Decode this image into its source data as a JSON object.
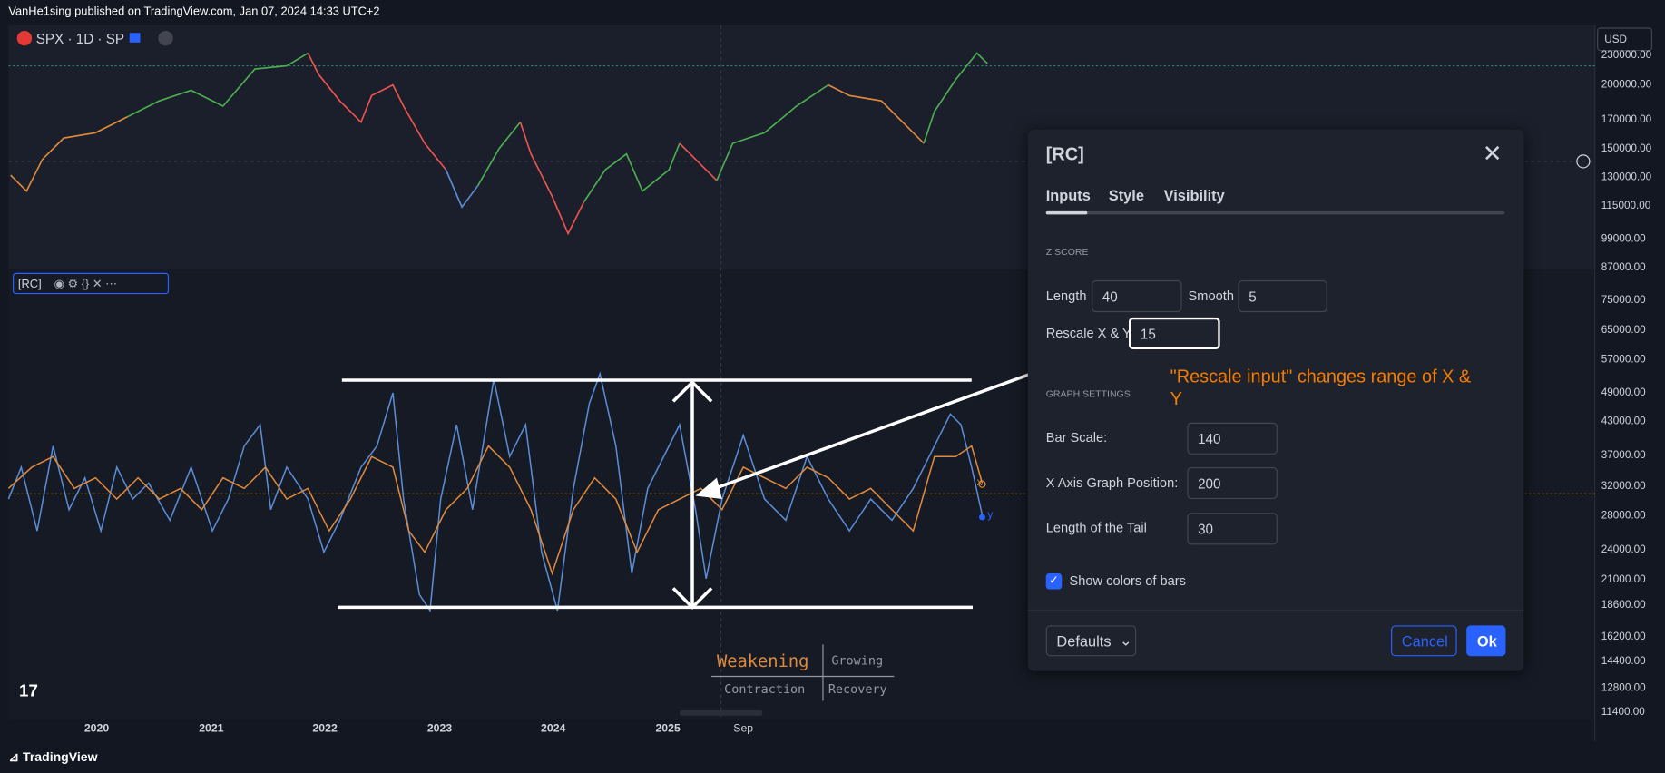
{
  "header": {
    "published": "VanHe1sing published on TradingView.com, Jan 07, 2024 14:33 UTC+2"
  },
  "symbol": "SPX · 1D · SP",
  "currency": "USD",
  "price_axis": [
    "230000.00",
    "200000.00",
    "170000.00",
    "150000.00",
    "130000.00",
    "115000.00",
    "99000.00",
    "87000.00",
    "75000.00",
    "65000.00",
    "57000.00",
    "49000.00",
    "43000.00",
    "37000.00",
    "32000.00",
    "28000.00",
    "24000.00",
    "21000.00",
    "18600.00",
    "16200.00",
    "14400.00",
    "12800.00",
    "11400.00"
  ],
  "time_axis": [
    "2020",
    "2021",
    "2022",
    "2023",
    "2024",
    "2025",
    "Sep"
  ],
  "indicator_label": "[RC]",
  "graph_labels": [
    "x",
    "y"
  ],
  "quadrants": [
    "Weakening",
    "Growing",
    "Contraction",
    "Recovery"
  ],
  "annotation": "\"Rescale input\" changes range of X & Y",
  "dialog": {
    "title": "[RC]",
    "tabs": [
      "Inputs",
      "Style",
      "Visibility"
    ],
    "sections": [
      "Z SCORE",
      "GRAPH SETTINGS"
    ],
    "fields": [
      {
        "label": "Length",
        "value": "40"
      },
      {
        "label": "Smooth",
        "value": "5"
      },
      {
        "label": "Rescale X & Y",
        "value": "15"
      },
      {
        "label": "Bar Scale:",
        "value": "140"
      },
      {
        "label": "X Axis Graph Position:",
        "value": "200"
      },
      {
        "label": "Length of the Tail",
        "value": "30"
      }
    ],
    "checkbox": "Show colors of bars",
    "buttons": [
      "Defaults",
      "Cancel",
      "Ok"
    ]
  },
  "footer": "TradingView"
}
